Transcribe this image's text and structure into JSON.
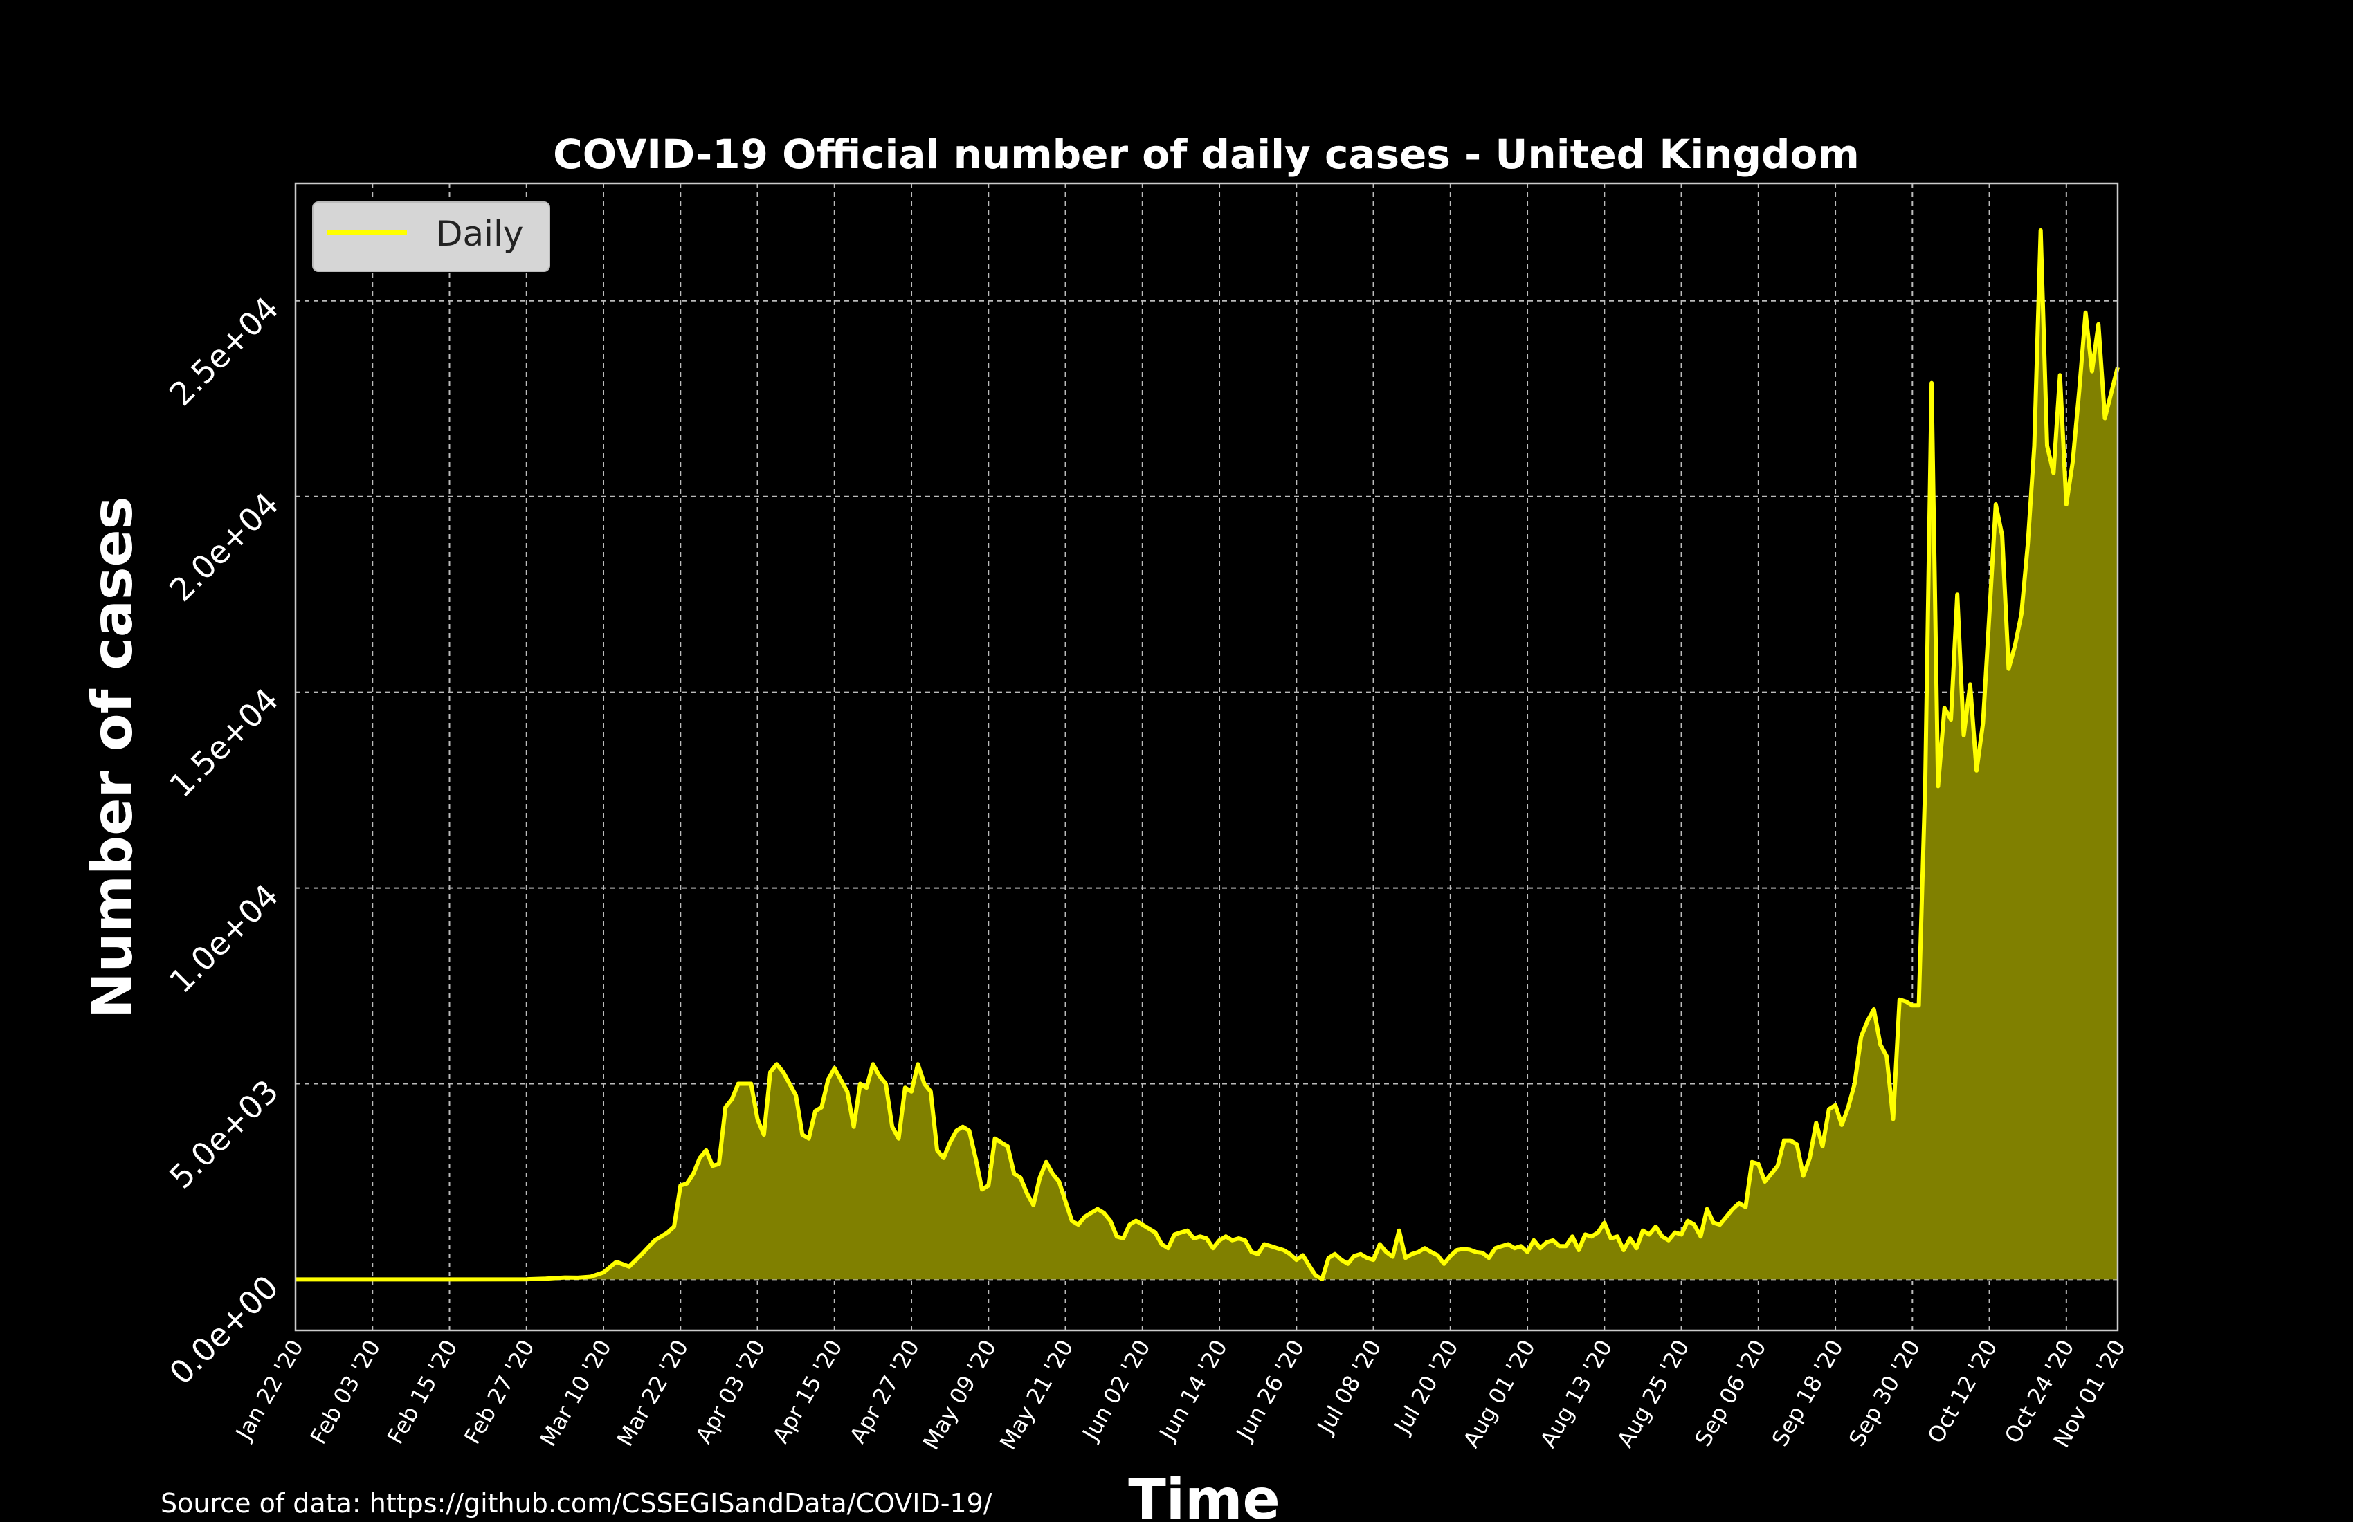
{
  "source_text": "Source of data: https://github.com/CSSEGISandData/COVID-19/",
  "colors": {
    "background": "#000000",
    "line": "#ffff00",
    "fill": "#808000",
    "grid": "#bbbbbb"
  },
  "chart_data": {
    "type": "area",
    "title": "COVID-19 Official number of daily cases - United Kingdom",
    "xlabel": "Time",
    "ylabel": "Number of cases",
    "grid": true,
    "legend": {
      "placement": "top-left",
      "entries": [
        "Daily"
      ]
    },
    "x_start": "2020-01-22",
    "x_end": "2020-11-01",
    "ylim": [
      -1300,
      28000
    ],
    "yticks": [
      0,
      5000,
      10000,
      15000,
      20000,
      25000
    ],
    "ytick_labels": [
      "0.0e+00",
      "5.0e+03",
      "1.0e+04",
      "1.5e+04",
      "2.0e+04",
      "2.5e+04"
    ],
    "xticks": [
      "2020-01-22",
      "2020-02-03",
      "2020-02-15",
      "2020-02-27",
      "2020-03-10",
      "2020-03-22",
      "2020-04-03",
      "2020-04-15",
      "2020-04-27",
      "2020-05-09",
      "2020-05-21",
      "2020-06-02",
      "2020-06-14",
      "2020-06-26",
      "2020-07-08",
      "2020-07-20",
      "2020-08-01",
      "2020-08-13",
      "2020-08-25",
      "2020-09-06",
      "2020-09-18",
      "2020-09-30",
      "2020-10-12",
      "2020-10-24",
      "2020-11-01"
    ],
    "xtick_labels": [
      "Jan 22 '20",
      "Feb 03 '20",
      "Feb 15 '20",
      "Feb 27 '20",
      "Mar 10 '20",
      "Mar 22 '20",
      "Apr 03 '20",
      "Apr 15 '20",
      "Apr 27 '20",
      "May 09 '20",
      "May 21 '20",
      "Jun 02 '20",
      "Jun 14 '20",
      "Jun 26 '20",
      "Jul 08 '20",
      "Jul 20 '20",
      "Aug 01 '20",
      "Aug 13 '20",
      "Aug 25 '20",
      "Sep 06 '20",
      "Sep 18 '20",
      "Sep 30 '20",
      "Oct 12 '20",
      "Oct 24 '20",
      "Nov 01 '20"
    ],
    "series": [
      {
        "name": "Daily",
        "points": [
          [
            "2020-01-22",
            0
          ],
          [
            "2020-02-01",
            0
          ],
          [
            "2020-02-15",
            0
          ],
          [
            "2020-02-27",
            5
          ],
          [
            "2020-03-01",
            20
          ],
          [
            "2020-03-04",
            50
          ],
          [
            "2020-03-06",
            45
          ],
          [
            "2020-03-08",
            70
          ],
          [
            "2020-03-10",
            180
          ],
          [
            "2020-03-12",
            450
          ],
          [
            "2020-03-14",
            330
          ],
          [
            "2020-03-16",
            650
          ],
          [
            "2020-03-18",
            1000
          ],
          [
            "2020-03-20",
            1200
          ],
          [
            "2020-03-21",
            1350
          ],
          [
            "2020-03-22",
            2400
          ],
          [
            "2020-03-23",
            2450
          ],
          [
            "2020-03-24",
            2700
          ],
          [
            "2020-03-25",
            3100
          ],
          [
            "2020-03-26",
            3300
          ],
          [
            "2020-03-27",
            2900
          ],
          [
            "2020-03-28",
            2950
          ],
          [
            "2020-03-29",
            4400
          ],
          [
            "2020-03-30",
            4600
          ],
          [
            "2020-03-31",
            5000
          ],
          [
            "2020-04-01",
            5000
          ],
          [
            "2020-04-02",
            5000
          ],
          [
            "2020-04-03",
            4100
          ],
          [
            "2020-04-04",
            3700
          ],
          [
            "2020-04-05",
            5300
          ],
          [
            "2020-04-06",
            5500
          ],
          [
            "2020-04-07",
            5300
          ],
          [
            "2020-04-08",
            5000
          ],
          [
            "2020-04-09",
            4700
          ],
          [
            "2020-04-10",
            3700
          ],
          [
            "2020-04-11",
            3600
          ],
          [
            "2020-04-12",
            4300
          ],
          [
            "2020-04-13",
            4400
          ],
          [
            "2020-04-14",
            5100
          ],
          [
            "2020-04-15",
            5400
          ],
          [
            "2020-04-16",
            5100
          ],
          [
            "2020-04-17",
            4800
          ],
          [
            "2020-04-18",
            3900
          ],
          [
            "2020-04-19",
            5000
          ],
          [
            "2020-04-20",
            4900
          ],
          [
            "2020-04-21",
            5500
          ],
          [
            "2020-04-22",
            5200
          ],
          [
            "2020-04-23",
            5000
          ],
          [
            "2020-04-24",
            3900
          ],
          [
            "2020-04-25",
            3600
          ],
          [
            "2020-04-26",
            4900
          ],
          [
            "2020-04-27",
            4800
          ],
          [
            "2020-04-28",
            5500
          ],
          [
            "2020-04-29",
            5000
          ],
          [
            "2020-04-30",
            4800
          ],
          [
            "2020-05-01",
            3300
          ],
          [
            "2020-05-02",
            3100
          ],
          [
            "2020-05-03",
            3500
          ],
          [
            "2020-05-04",
            3800
          ],
          [
            "2020-05-05",
            3900
          ],
          [
            "2020-05-06",
            3800
          ],
          [
            "2020-05-07",
            3100
          ],
          [
            "2020-05-08",
            2300
          ],
          [
            "2020-05-09",
            2400
          ],
          [
            "2020-05-10",
            3600
          ],
          [
            "2020-05-11",
            3500
          ],
          [
            "2020-05-12",
            3400
          ],
          [
            "2020-05-13",
            2700
          ],
          [
            "2020-05-14",
            2600
          ],
          [
            "2020-05-15",
            2200
          ],
          [
            "2020-05-16",
            1900
          ],
          [
            "2020-05-17",
            2600
          ],
          [
            "2020-05-18",
            3000
          ],
          [
            "2020-05-19",
            2700
          ],
          [
            "2020-05-20",
            2500
          ],
          [
            "2020-05-21",
            2000
          ],
          [
            "2020-05-22",
            1500
          ],
          [
            "2020-05-23",
            1400
          ],
          [
            "2020-05-24",
            1600
          ],
          [
            "2020-05-25",
            1700
          ],
          [
            "2020-05-26",
            1800
          ],
          [
            "2020-05-27",
            1700
          ],
          [
            "2020-05-28",
            1500
          ],
          [
            "2020-05-29",
            1100
          ],
          [
            "2020-05-30",
            1050
          ],
          [
            "2020-05-31",
            1400
          ],
          [
            "2020-06-01",
            1500
          ],
          [
            "2020-06-02",
            1400
          ],
          [
            "2020-06-03",
            1300
          ],
          [
            "2020-06-04",
            1200
          ],
          [
            "2020-06-05",
            900
          ],
          [
            "2020-06-06",
            800
          ],
          [
            "2020-06-07",
            1150
          ],
          [
            "2020-06-08",
            1200
          ],
          [
            "2020-06-09",
            1250
          ],
          [
            "2020-06-10",
            1050
          ],
          [
            "2020-06-11",
            1100
          ],
          [
            "2020-06-12",
            1050
          ],
          [
            "2020-06-13",
            800
          ],
          [
            "2020-06-14",
            1000
          ],
          [
            "2020-06-15",
            1100
          ],
          [
            "2020-06-16",
            1000
          ],
          [
            "2020-06-17",
            1050
          ],
          [
            "2020-06-18",
            1000
          ],
          [
            "2020-06-19",
            700
          ],
          [
            "2020-06-20",
            650
          ],
          [
            "2020-06-21",
            900
          ],
          [
            "2020-06-22",
            850
          ],
          [
            "2020-06-23",
            800
          ],
          [
            "2020-06-24",
            750
          ],
          [
            "2020-06-25",
            650
          ],
          [
            "2020-06-26",
            500
          ],
          [
            "2020-06-27",
            620
          ],
          [
            "2020-06-28",
            350
          ],
          [
            "2020-06-29",
            100
          ],
          [
            "2020-06-30",
            10
          ],
          [
            "2020-07-01",
            550
          ],
          [
            "2020-07-02",
            650
          ],
          [
            "2020-07-03",
            500
          ],
          [
            "2020-07-04",
            400
          ],
          [
            "2020-07-05",
            600
          ],
          [
            "2020-07-06",
            650
          ],
          [
            "2020-07-07",
            550
          ],
          [
            "2020-07-08",
            500
          ],
          [
            "2020-07-09",
            900
          ],
          [
            "2020-07-10",
            700
          ],
          [
            "2020-07-11",
            580
          ],
          [
            "2020-07-12",
            1250
          ],
          [
            "2020-07-13",
            550
          ],
          [
            "2020-07-14",
            650
          ],
          [
            "2020-07-15",
            700
          ],
          [
            "2020-07-16",
            800
          ],
          [
            "2020-07-17",
            700
          ],
          [
            "2020-07-18",
            620
          ],
          [
            "2020-07-19",
            400
          ],
          [
            "2020-07-20",
            600
          ],
          [
            "2020-07-21",
            750
          ],
          [
            "2020-07-22",
            780
          ],
          [
            "2020-07-23",
            760
          ],
          [
            "2020-07-24",
            700
          ],
          [
            "2020-07-25",
            680
          ],
          [
            "2020-07-26",
            550
          ],
          [
            "2020-07-27",
            800
          ],
          [
            "2020-07-28",
            850
          ],
          [
            "2020-07-29",
            900
          ],
          [
            "2020-07-30",
            800
          ],
          [
            "2020-07-31",
            850
          ],
          [
            "2020-08-01",
            700
          ],
          [
            "2020-08-02",
            1000
          ],
          [
            "2020-08-03",
            800
          ],
          [
            "2020-08-04",
            950
          ],
          [
            "2020-08-05",
            1000
          ],
          [
            "2020-08-06",
            850
          ],
          [
            "2020-08-07",
            850
          ],
          [
            "2020-08-08",
            1100
          ],
          [
            "2020-08-09",
            750
          ],
          [
            "2020-08-10",
            1150
          ],
          [
            "2020-08-11",
            1100
          ],
          [
            "2020-08-12",
            1200
          ],
          [
            "2020-08-13",
            1450
          ],
          [
            "2020-08-14",
            1050
          ],
          [
            "2020-08-15",
            1100
          ],
          [
            "2020-08-16",
            750
          ],
          [
            "2020-08-17",
            1050
          ],
          [
            "2020-08-18",
            800
          ],
          [
            "2020-08-19",
            1250
          ],
          [
            "2020-08-20",
            1150
          ],
          [
            "2020-08-21",
            1350
          ],
          [
            "2020-08-22",
            1100
          ],
          [
            "2020-08-23",
            1000
          ],
          [
            "2020-08-24",
            1200
          ],
          [
            "2020-08-25",
            1150
          ],
          [
            "2020-08-26",
            1500
          ],
          [
            "2020-08-27",
            1400
          ],
          [
            "2020-08-28",
            1100
          ],
          [
            "2020-08-29",
            1800
          ],
          [
            "2020-08-30",
            1450
          ],
          [
            "2020-08-31",
            1400
          ],
          [
            "2020-09-01",
            1600
          ],
          [
            "2020-09-02",
            1800
          ],
          [
            "2020-09-03",
            1950
          ],
          [
            "2020-09-04",
            1850
          ],
          [
            "2020-09-05",
            3000
          ],
          [
            "2020-09-06",
            2950
          ],
          [
            "2020-09-07",
            2500
          ],
          [
            "2020-09-08",
            2700
          ],
          [
            "2020-09-09",
            2900
          ],
          [
            "2020-09-10",
            3550
          ],
          [
            "2020-09-11",
            3550
          ],
          [
            "2020-09-12",
            3450
          ],
          [
            "2020-09-13",
            2650
          ],
          [
            "2020-09-14",
            3100
          ],
          [
            "2020-09-15",
            4000
          ],
          [
            "2020-09-16",
            3400
          ],
          [
            "2020-09-17",
            4350
          ],
          [
            "2020-09-18",
            4450
          ],
          [
            "2020-09-19",
            3950
          ],
          [
            "2020-09-20",
            4400
          ],
          [
            "2020-09-21",
            5000
          ],
          [
            "2020-09-22",
            6200
          ],
          [
            "2020-09-23",
            6600
          ],
          [
            "2020-09-24",
            6900
          ],
          [
            "2020-09-25",
            6000
          ],
          [
            "2020-09-26",
            5700
          ],
          [
            "2020-09-27",
            4100
          ],
          [
            "2020-09-28",
            7150
          ],
          [
            "2020-09-29",
            7100
          ],
          [
            "2020-09-30",
            7000
          ],
          [
            "2020-10-01",
            7000
          ],
          [
            "2020-10-02",
            12700
          ],
          [
            "2020-10-03",
            22900
          ],
          [
            "2020-10-04",
            12600
          ],
          [
            "2020-10-05",
            14600
          ],
          [
            "2020-10-06",
            14300
          ],
          [
            "2020-10-07",
            17500
          ],
          [
            "2020-10-08",
            13900
          ],
          [
            "2020-10-09",
            15200
          ],
          [
            "2020-10-10",
            13000
          ],
          [
            "2020-10-11",
            14200
          ],
          [
            "2020-10-12",
            17000
          ],
          [
            "2020-10-13",
            19800
          ],
          [
            "2020-10-14",
            19000
          ],
          [
            "2020-10-15",
            15600
          ],
          [
            "2020-10-16",
            16200
          ],
          [
            "2020-10-17",
            17000
          ],
          [
            "2020-10-18",
            18800
          ],
          [
            "2020-10-19",
            21300
          ],
          [
            "2020-10-20",
            26800
          ],
          [
            "2020-10-21",
            21300
          ],
          [
            "2020-10-22",
            20600
          ],
          [
            "2020-10-23",
            23100
          ],
          [
            "2020-10-24",
            19800
          ],
          [
            "2020-10-25",
            20900
          ],
          [
            "2020-10-26",
            22700
          ],
          [
            "2020-10-27",
            24700
          ],
          [
            "2020-10-28",
            23200
          ],
          [
            "2020-10-29",
            24400
          ],
          [
            "2020-10-30",
            22000
          ],
          [
            "2020-11-01",
            23300
          ]
        ]
      }
    ]
  }
}
